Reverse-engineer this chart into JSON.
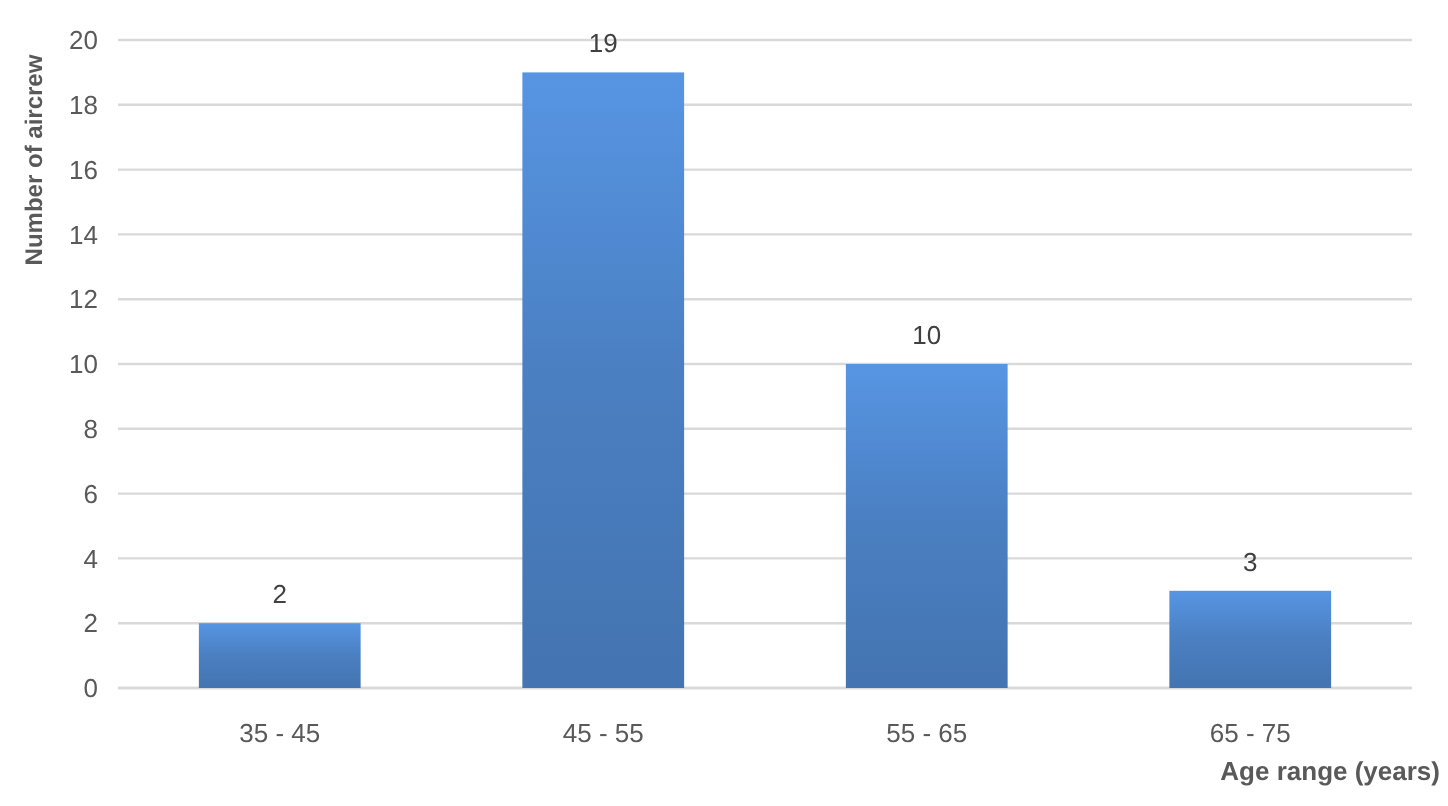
{
  "chart_data": {
    "type": "bar",
    "xlabel": "Age range (years)",
    "ylabel": "Number of aircrew",
    "categories": [
      "35 - 45",
      "45 - 55",
      "55 - 65",
      "65 - 75"
    ],
    "values": [
      2,
      19,
      10,
      3
    ],
    "color": "#4a7fc1",
    "ylim": [
      0,
      20
    ],
    "yticks": [
      0,
      2,
      4,
      6,
      8,
      10,
      12,
      14,
      16,
      18,
      20
    ],
    "grid": "y",
    "data_labels": true
  }
}
